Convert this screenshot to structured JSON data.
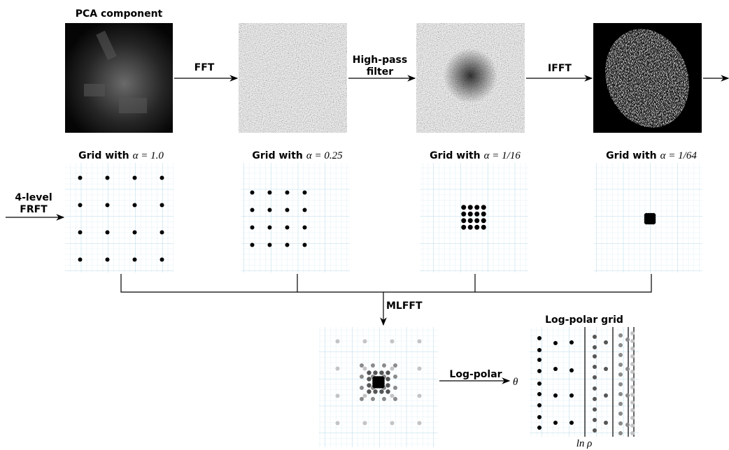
{
  "top_row": {
    "image_title": "PCA component",
    "arrows": {
      "fft": "FFT",
      "high_pass": [
        "High-pass",
        "filter"
      ],
      "ifft": "IFFT"
    }
  },
  "grids": [
    {
      "prefix": "Grid with",
      "math": "α = 1.0"
    },
    {
      "prefix": "Grid with",
      "math": "α = 0.25"
    },
    {
      "prefix": "Grid with",
      "math": "α = 1/16"
    },
    {
      "prefix": "Grid with",
      "math": "α = 1/64"
    }
  ],
  "frft_arrow": [
    "4-level",
    "FRFT"
  ],
  "mlfft_arrow": "MLFFT",
  "log_polar_arrow": "Log-polar",
  "log_polar_grid": {
    "title": "Log-polar grid",
    "theta": "θ",
    "rho": "ln ρ"
  }
}
